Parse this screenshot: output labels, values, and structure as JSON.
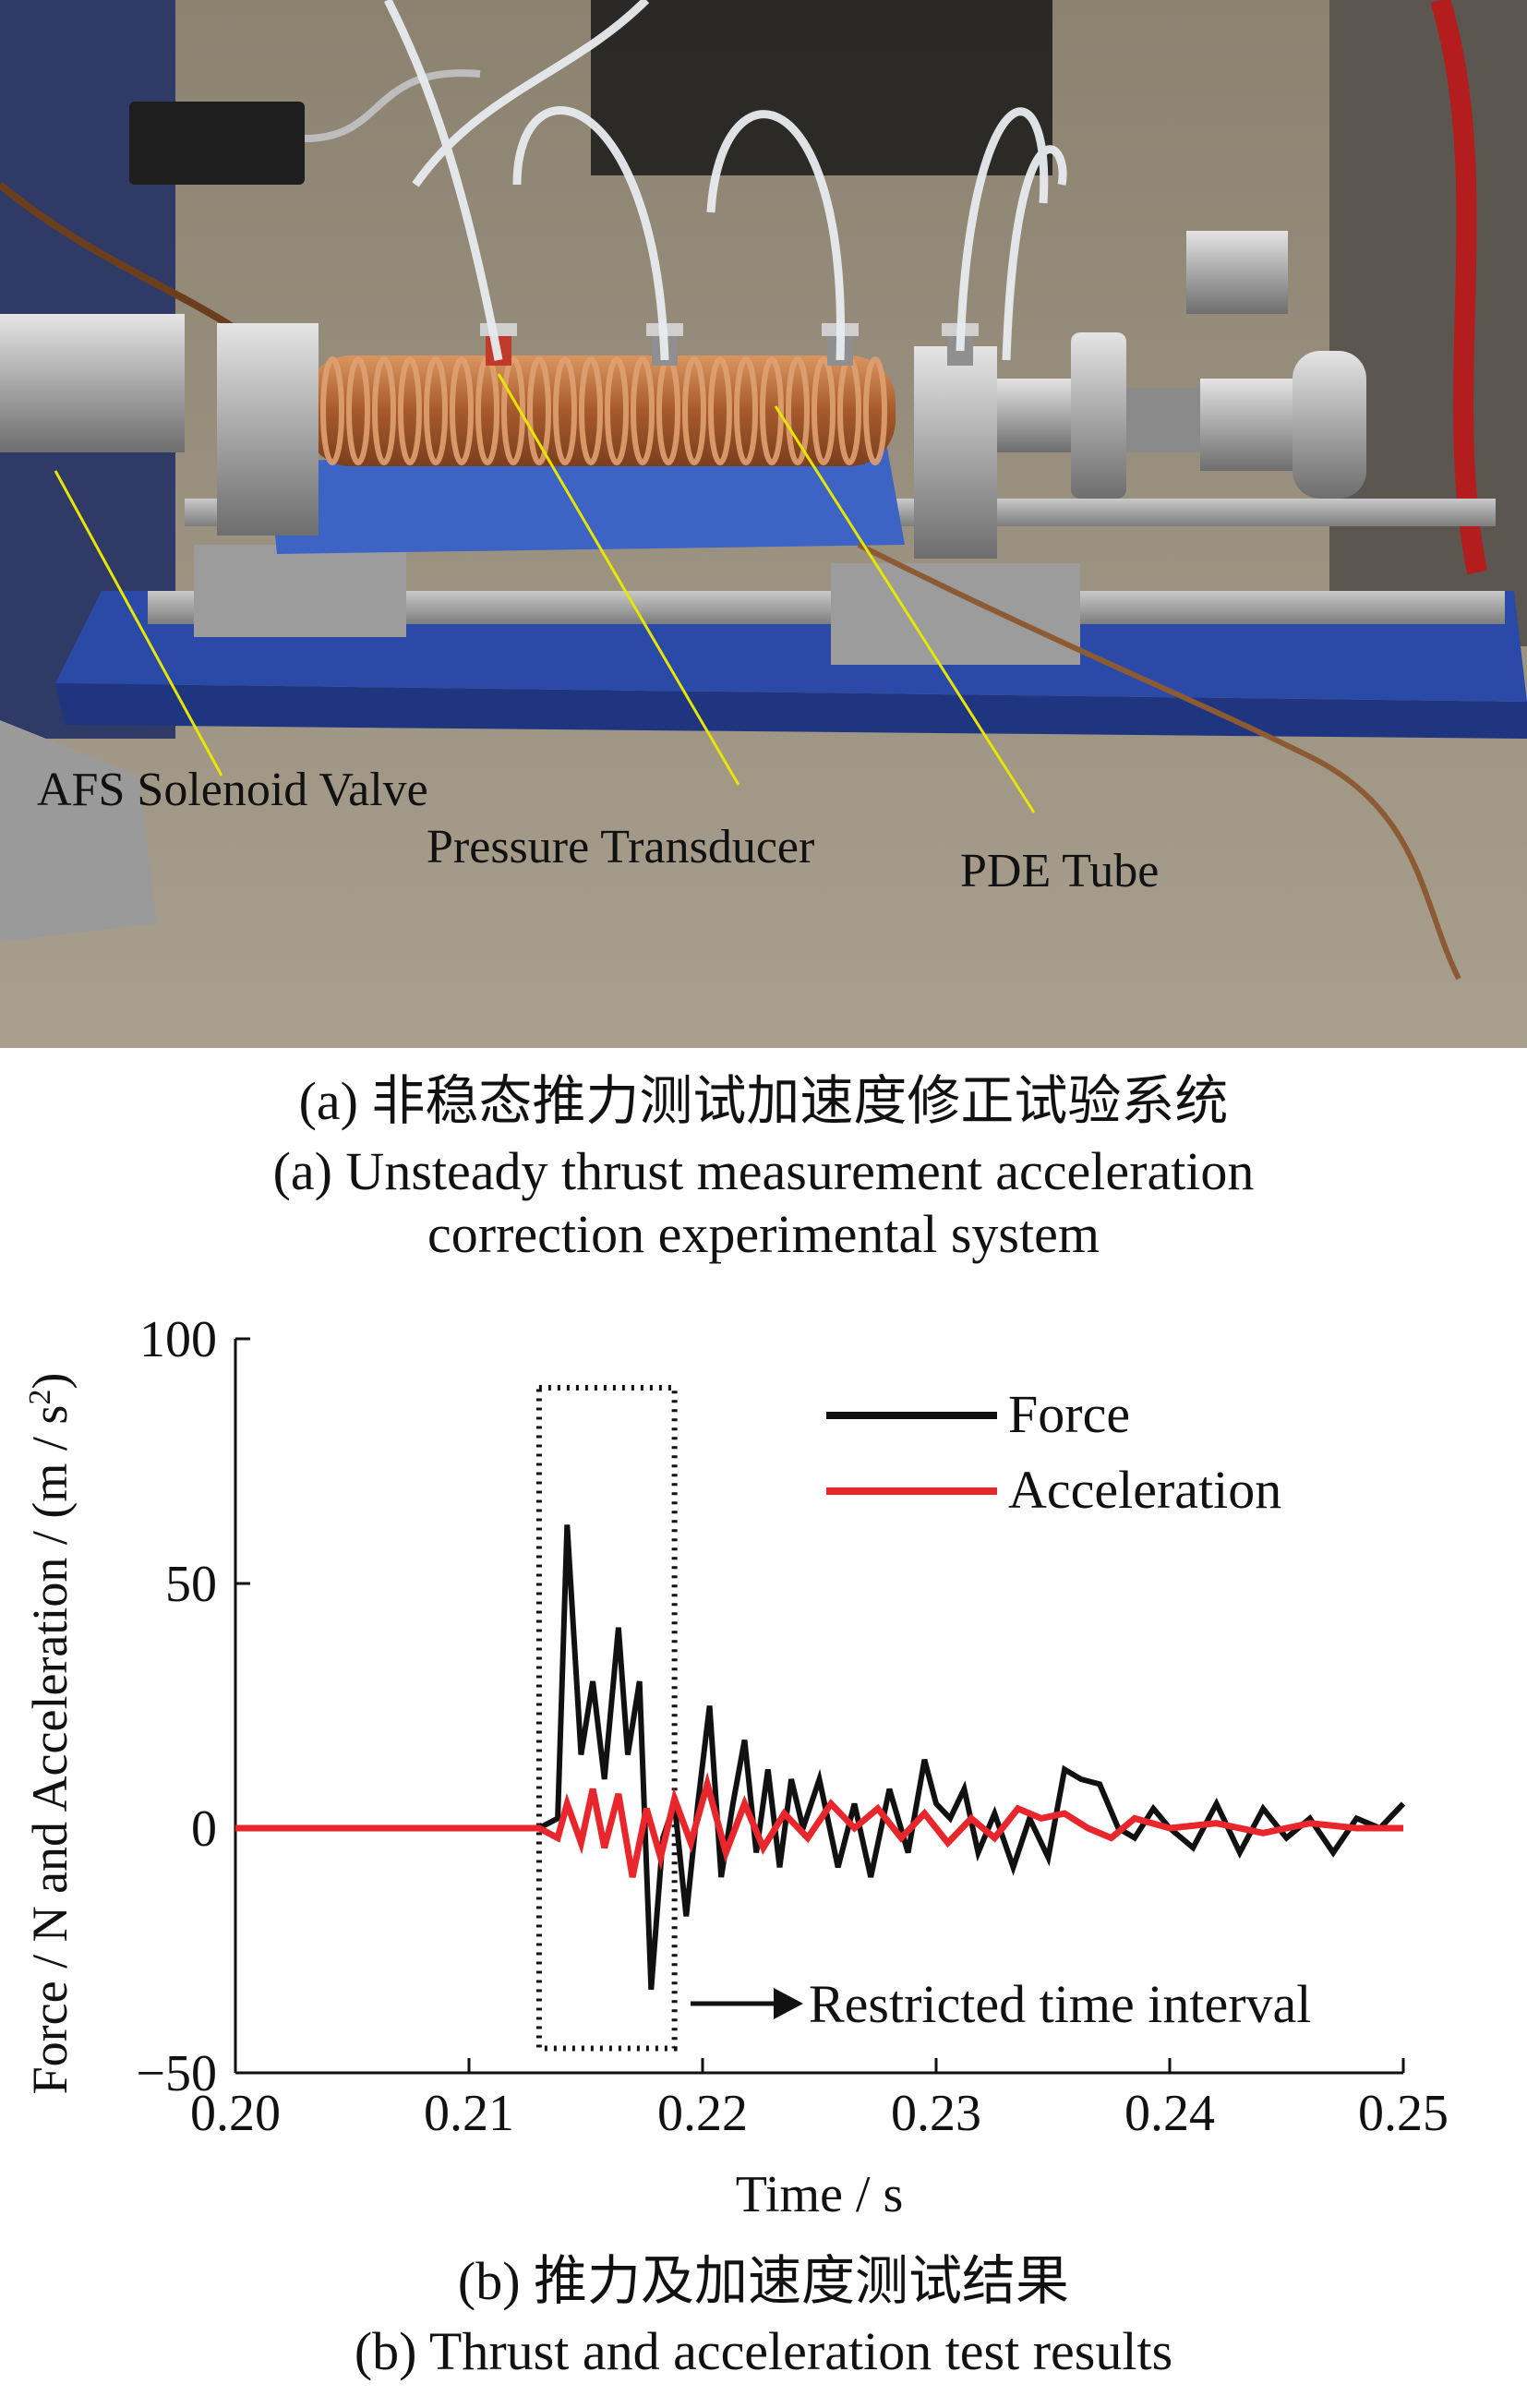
{
  "figure_a": {
    "labels": {
      "solenoid": "AFS Solenoid Valve",
      "transducer": "Pressure Transducer",
      "tube": "PDE Tube"
    },
    "caption_zh": "(a) 非稳态推力测试加速度修正试验系统",
    "caption_en_line1": "(a) Unsteady thrust measurement acceleration",
    "caption_en_line2": "correction experimental system"
  },
  "figure_b": {
    "caption_zh": "(b) 推力及加速度测试结果",
    "caption_en": "(b) Thrust and acceleration test results"
  },
  "colors": {
    "force": "#111111",
    "acceleration": "#e8262b",
    "annotation_line": "#e6e600",
    "bench_blue": "#2b4aa8",
    "copper": "#b8683a"
  },
  "chart_data": {
    "type": "line",
    "xlabel": "Time / s",
    "ylabel": "Force / N and Acceleration / (m / s",
    "ylabel_sup": "2",
    "ylabel_tail": ")",
    "xlim": [
      0.2,
      0.25
    ],
    "ylim": [
      -50,
      100
    ],
    "x_ticks": [
      "0.20",
      "0.21",
      "0.22",
      "0.23",
      "0.24",
      "0.25"
    ],
    "y_ticks": [
      "−50",
      "0",
      "50",
      "100"
    ],
    "legend_position": "top-right",
    "annotation": "Restricted time interval",
    "restricted_interval": {
      "x": [
        0.213,
        0.2188
      ],
      "y": [
        -45,
        90
      ]
    },
    "series": [
      {
        "name": "Force",
        "x": [
          0.2,
          0.205,
          0.21,
          0.213,
          0.2138,
          0.2142,
          0.2148,
          0.2153,
          0.2158,
          0.2164,
          0.2168,
          0.2173,
          0.2178,
          0.2183,
          0.2188,
          0.2193,
          0.2198,
          0.2203,
          0.2208,
          0.2213,
          0.2218,
          0.2223,
          0.2228,
          0.2233,
          0.2238,
          0.2243,
          0.225,
          0.2258,
          0.2265,
          0.2272,
          0.228,
          0.2288,
          0.2295,
          0.23,
          0.2306,
          0.2312,
          0.2318,
          0.2325,
          0.2333,
          0.234,
          0.2348,
          0.2355,
          0.2362,
          0.237,
          0.2378,
          0.2385,
          0.2393,
          0.24,
          0.241,
          0.242,
          0.243,
          0.244,
          0.245,
          0.246,
          0.247,
          0.248,
          0.249,
          0.25
        ],
        "values": [
          0,
          0,
          0,
          0,
          2,
          62,
          15,
          30,
          10,
          41,
          15,
          30,
          -33,
          -2,
          5,
          -18,
          5,
          25,
          -10,
          5,
          18,
          -5,
          12,
          -8,
          10,
          0,
          10,
          -8,
          5,
          -10,
          8,
          -5,
          14,
          5,
          2,
          8,
          -5,
          3,
          -8,
          2,
          -6,
          12,
          10,
          9,
          0,
          -2,
          4,
          0,
          -4,
          5,
          -5,
          4,
          -2,
          2,
          -5,
          2,
          0,
          5
        ]
      },
      {
        "name": "Acceleration",
        "x": [
          0.2,
          0.205,
          0.21,
          0.213,
          0.2138,
          0.2142,
          0.2148,
          0.2153,
          0.2158,
          0.2164,
          0.217,
          0.2176,
          0.2182,
          0.2188,
          0.2195,
          0.2202,
          0.221,
          0.2218,
          0.2226,
          0.2235,
          0.2245,
          0.2255,
          0.2265,
          0.2275,
          0.2285,
          0.2295,
          0.2305,
          0.2315,
          0.2325,
          0.2335,
          0.2345,
          0.2355,
          0.2365,
          0.2375,
          0.2385,
          0.24,
          0.242,
          0.244,
          0.246,
          0.248,
          0.25
        ],
        "values": [
          0,
          0,
          0,
          0,
          -2,
          5,
          -3,
          8,
          -4,
          7,
          -10,
          4,
          -6,
          6,
          -3,
          9,
          -5,
          5,
          -4,
          3,
          -2,
          5,
          0,
          4,
          -2,
          3,
          -3,
          2,
          -2,
          4,
          2,
          3,
          0,
          -2,
          2,
          0,
          1,
          -1,
          1,
          0,
          0
        ]
      }
    ]
  }
}
